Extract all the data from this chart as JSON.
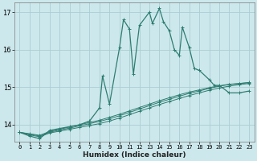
{
  "xlabel": "Humidex (Indice chaleur)",
  "bg_color": "#cde8ec",
  "grid_color": "#aacdd4",
  "line_color": "#2d7d72",
  "xlim": [
    -0.5,
    23.5
  ],
  "ylim": [
    13.55,
    17.25
  ],
  "yticks": [
    14,
    15,
    16,
    17
  ],
  "xticks": [
    0,
    1,
    2,
    3,
    4,
    5,
    6,
    7,
    8,
    9,
    10,
    11,
    12,
    13,
    14,
    15,
    16,
    17,
    18,
    19,
    20,
    21,
    22,
    23
  ],
  "series_main": [
    [
      0,
      13.8
    ],
    [
      1,
      13.7
    ],
    [
      2,
      13.63
    ],
    [
      3,
      13.85
    ],
    [
      4,
      13.9
    ],
    [
      5,
      13.95
    ],
    [
      6,
      14.0
    ],
    [
      7,
      14.1
    ],
    [
      8,
      14.45
    ],
    [
      8.3,
      15.3
    ],
    [
      9,
      14.55
    ],
    [
      10,
      16.05
    ],
    [
      10.4,
      16.8
    ],
    [
      11,
      16.55
    ],
    [
      11.4,
      15.35
    ],
    [
      12,
      16.65
    ],
    [
      13,
      17.0
    ],
    [
      13.3,
      16.7
    ],
    [
      14,
      17.1
    ],
    [
      14.4,
      16.75
    ],
    [
      15,
      16.5
    ],
    [
      15.5,
      16.0
    ],
    [
      16,
      15.85
    ],
    [
      16.3,
      16.6
    ],
    [
      17,
      16.05
    ],
    [
      17.5,
      15.5
    ],
    [
      18,
      15.45
    ],
    [
      19,
      15.2
    ],
    [
      19.5,
      15.05
    ],
    [
      20,
      15.05
    ],
    [
      21,
      14.85
    ],
    [
      22,
      14.85
    ],
    [
      23,
      14.9
    ]
  ],
  "series2": [
    [
      0,
      13.8
    ],
    [
      1,
      13.73
    ],
    [
      2,
      13.68
    ],
    [
      3,
      13.78
    ],
    [
      4,
      13.83
    ],
    [
      5,
      13.88
    ],
    [
      6,
      13.93
    ],
    [
      7,
      13.98
    ],
    [
      8,
      14.03
    ],
    [
      9,
      14.1
    ],
    [
      10,
      14.18
    ],
    [
      11,
      14.27
    ],
    [
      12,
      14.36
    ],
    [
      13,
      14.45
    ],
    [
      14,
      14.54
    ],
    [
      15,
      14.62
    ],
    [
      16,
      14.7
    ],
    [
      17,
      14.78
    ],
    [
      18,
      14.85
    ],
    [
      19,
      14.92
    ],
    [
      20,
      14.98
    ],
    [
      21,
      15.03
    ],
    [
      22,
      15.07
    ],
    [
      23,
      15.1
    ]
  ],
  "series3": [
    [
      0,
      13.8
    ],
    [
      1,
      13.75
    ],
    [
      2,
      13.7
    ],
    [
      3,
      13.8
    ],
    [
      4,
      13.86
    ],
    [
      5,
      13.91
    ],
    [
      6,
      13.97
    ],
    [
      7,
      14.03
    ],
    [
      8,
      14.09
    ],
    [
      9,
      14.16
    ],
    [
      10,
      14.24
    ],
    [
      11,
      14.33
    ],
    [
      12,
      14.42
    ],
    [
      13,
      14.51
    ],
    [
      14,
      14.6
    ],
    [
      15,
      14.68
    ],
    [
      16,
      14.76
    ],
    [
      17,
      14.84
    ],
    [
      18,
      14.9
    ],
    [
      19,
      14.97
    ],
    [
      20,
      15.03
    ],
    [
      21,
      15.07
    ],
    [
      22,
      15.1
    ],
    [
      23,
      15.12
    ]
  ],
  "series4": [
    [
      0,
      13.8
    ],
    [
      1,
      13.76
    ],
    [
      2,
      13.72
    ],
    [
      3,
      13.82
    ],
    [
      4,
      13.88
    ],
    [
      5,
      13.94
    ],
    [
      6,
      14.0
    ],
    [
      7,
      14.06
    ],
    [
      8,
      14.12
    ],
    [
      9,
      14.2
    ],
    [
      10,
      14.28
    ],
    [
      11,
      14.37
    ],
    [
      12,
      14.46
    ],
    [
      13,
      14.55
    ],
    [
      14,
      14.64
    ],
    [
      15,
      14.72
    ],
    [
      16,
      14.8
    ],
    [
      17,
      14.87
    ],
    [
      18,
      14.93
    ],
    [
      19,
      14.99
    ],
    [
      20,
      15.04
    ],
    [
      21,
      15.08
    ],
    [
      22,
      15.1
    ],
    [
      23,
      15.13
    ]
  ]
}
